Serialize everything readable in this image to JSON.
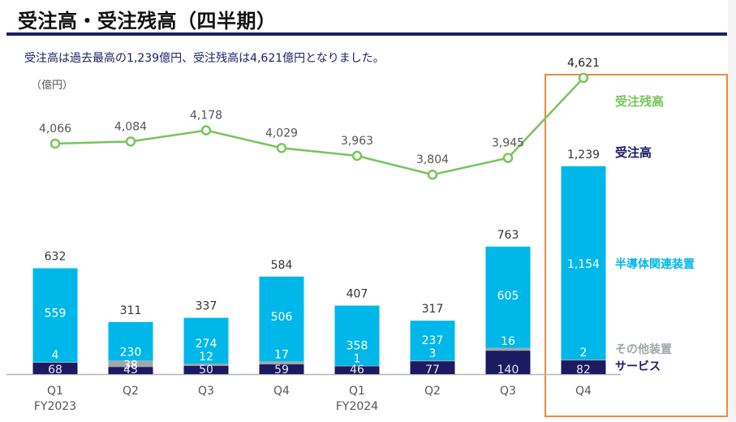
{
  "header": {
    "title": "受注高・受注残高（四半期）",
    "subtitle": "受注高は過去最高の1,239億円、受注残高は4,621億円となりました。",
    "unit": "（億円）"
  },
  "colors": {
    "semiconductor": "#00b7e9",
    "other": "#9fa8a8",
    "service": "#1b1b62",
    "backlog_line": "#77c55a",
    "highlight_box": "#ee8a3f",
    "title_rule": "#1b2167"
  },
  "chart_data": {
    "type": "bar",
    "title": "受注高・受注残高（四半期）",
    "ylabel": "（億円）",
    "xlabel": "",
    "categories": [
      "Q1",
      "Q2",
      "Q3",
      "Q4",
      "Q1",
      "Q2",
      "Q3",
      "Q4"
    ],
    "fiscal_year_labels": [
      "FY2023",
      "",
      "",
      "",
      "FY2024",
      "",
      "",
      ""
    ],
    "series": [
      {
        "name": "サービス",
        "key": "service",
        "values": [
          68,
          43,
          50,
          59,
          46,
          77,
          140,
          82
        ]
      },
      {
        "name": "その他装置",
        "key": "other",
        "values": [
          4,
          38,
          12,
          17,
          1,
          3,
          16,
          2
        ]
      },
      {
        "name": "半導体関連装置",
        "key": "semiconductor",
        "values": [
          559,
          230,
          274,
          506,
          358,
          237,
          605,
          1154
        ]
      }
    ],
    "totals": {
      "name": "受注高",
      "values": [
        632,
        311,
        337,
        584,
        407,
        317,
        763,
        1239
      ]
    },
    "line": {
      "name": "受注残高",
      "values": [
        4066,
        4084,
        4178,
        4029,
        3963,
        3804,
        3945,
        4621
      ]
    },
    "bar_labels": {
      "service": [
        "68",
        "43",
        "50",
        "59",
        "46",
        "77",
        "140",
        "82"
      ],
      "other": [
        "4",
        "38",
        "12",
        "17",
        "1",
        "3",
        "16",
        "2"
      ],
      "semiconductor": [
        "559",
        "230",
        "274",
        "506",
        "358",
        "237",
        "605",
        "1,154"
      ],
      "totals": [
        "632",
        "311",
        "337",
        "584",
        "407",
        "317",
        "763",
        "1,239"
      ],
      "line": [
        "4,066",
        "4,084",
        "4,178",
        "4,029",
        "3,963",
        "3,804",
        "3,945",
        "4,621"
      ]
    },
    "legend": {
      "backlog": "受注残高",
      "orders": "受注高",
      "semiconductor": "半導体関連装置",
      "other": "その他装置",
      "service": "サービス"
    },
    "highlighted_category_index": 7,
    "grid": false,
    "legend_position": "right"
  }
}
